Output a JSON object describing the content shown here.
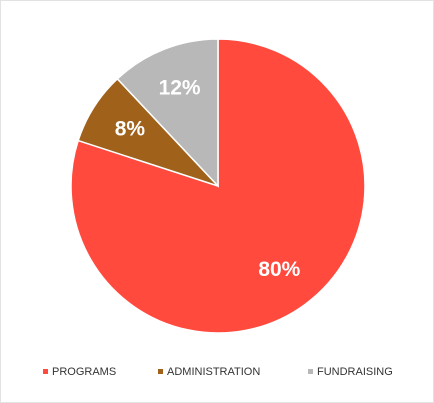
{
  "chart_data": {
    "type": "pie",
    "categories": [
      "PROGRAMS",
      "ADMINISTRATION",
      "FUNDRAISING"
    ],
    "values": [
      80,
      8,
      12
    ],
    "value_labels": [
      "80%",
      "8%",
      "12%"
    ],
    "colors": [
      "#ff4a3d",
      "#a0611a",
      "#b8b8b8"
    ],
    "legend": "bottom"
  }
}
